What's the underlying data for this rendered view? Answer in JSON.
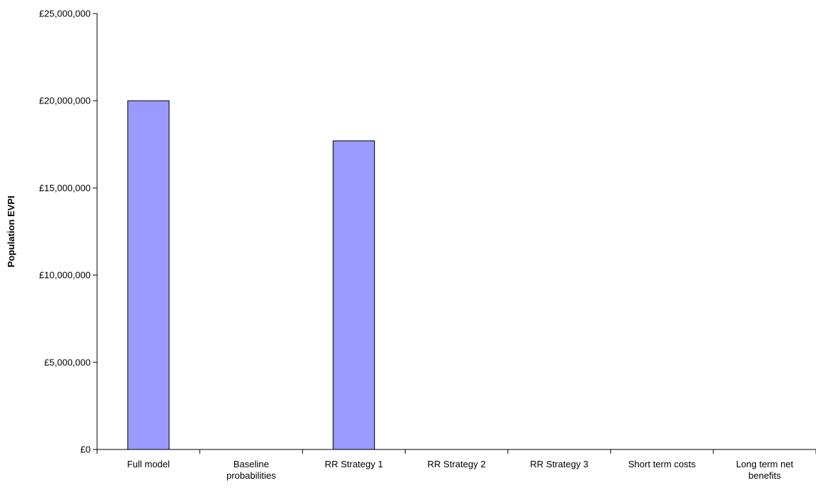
{
  "chart_data": {
    "type": "bar",
    "title": "",
    "xlabel": "",
    "ylabel": "Population EVPI",
    "categories": [
      [
        "Full model"
      ],
      [
        "Baseline",
        "probabilities"
      ],
      [
        "RR Strategy 1"
      ],
      [
        "RR Strategy 2"
      ],
      [
        "RR Strategy 3"
      ],
      [
        "Short term costs"
      ],
      [
        "Long term net",
        "benefits"
      ]
    ],
    "values": [
      20000000,
      0,
      17700000,
      0,
      0,
      0,
      0
    ],
    "ylim": [
      0,
      25000000
    ],
    "yticks": [
      0,
      5000000,
      10000000,
      15000000,
      20000000,
      25000000
    ],
    "ytick_labels": [
      "£0",
      "£5,000,000",
      "£10,000,000",
      "£15,000,000",
      "£20,000,000",
      "£25,000,000"
    ],
    "grid": false,
    "legend": "none",
    "colors": {
      "bar_fill": "#9999ff",
      "bar_stroke": "#000000",
      "axis": "#000000"
    }
  }
}
